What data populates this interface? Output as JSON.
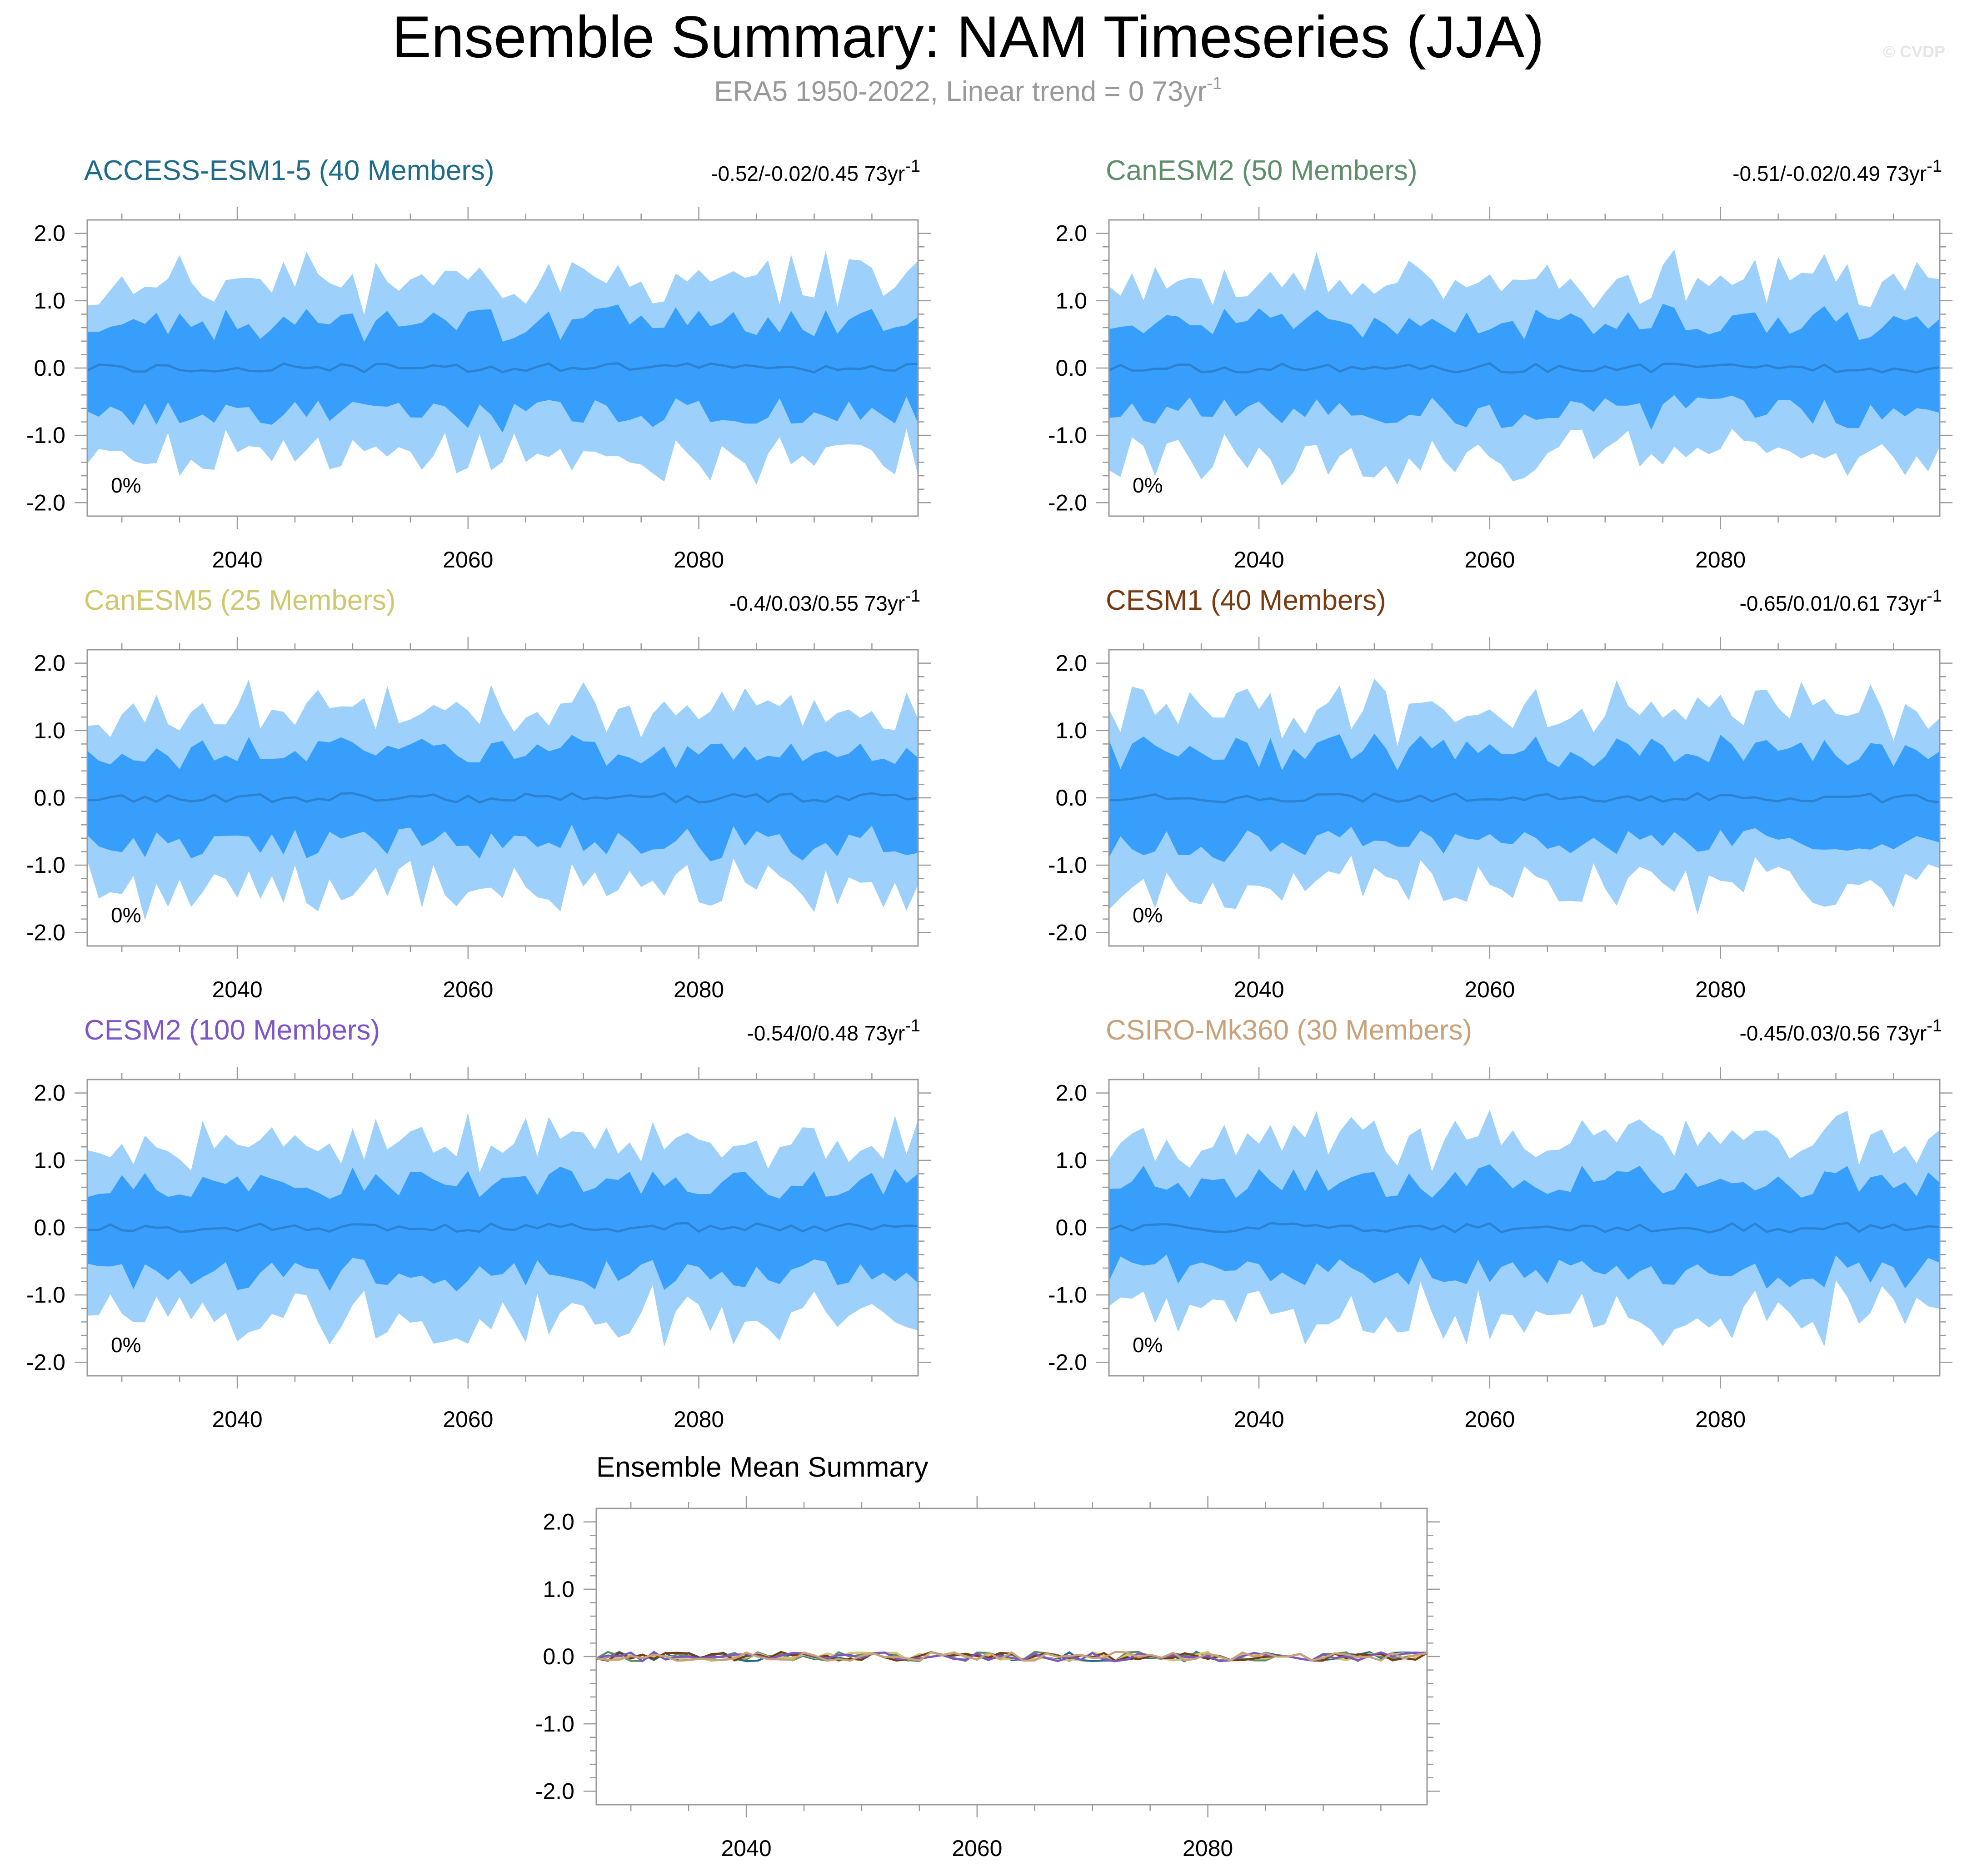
{
  "header": {
    "title": "Ensemble Summary: NAM Timeseries (JJA)",
    "subtitle": "ERA5 1950-2022, Linear trend = 0 73yr",
    "subtitle_sup": "-1",
    "watermark": "© CVDP"
  },
  "colors": {
    "band_outer": "#9dd1fb",
    "band_inner": "#379ffb",
    "mean_line": "#2c82d0",
    "axis": "#9a9a9a",
    "text": "#000000"
  },
  "panels": [
    {
      "id": "access",
      "title": "ACCESS-ESM1-5 (40 Members)",
      "color": "#1f6b8a",
      "range_text": "-0.52/-0.02/0.45 73yr",
      "range_sup": "-1",
      "pct_label": "0%",
      "seed": 11
    },
    {
      "id": "canesm2",
      "title": "CanESM2 (50 Members)",
      "color": "#5f8f6a",
      "range_text": "-0.51/-0.02/0.49 73yr",
      "range_sup": "-1",
      "pct_label": "0%",
      "seed": 23
    },
    {
      "id": "canesm5",
      "title": "CanESM5 (25 Members)",
      "color": "#cfc86f",
      "range_text": "-0.4/0.03/0.55 73yr",
      "range_sup": "-1",
      "pct_label": "0%",
      "seed": 37
    },
    {
      "id": "cesm1",
      "title": "CESM1 (40 Members)",
      "color": "#7a3b12",
      "range_text": "-0.65/0.01/0.61 73yr",
      "range_sup": "-1",
      "pct_label": "0%",
      "seed": 41
    },
    {
      "id": "cesm2",
      "title": "CESM2 (100 Members)",
      "color": "#7d56c8",
      "range_text": "-0.54/0/0.48 73yr",
      "range_sup": "-1",
      "pct_label": "0%",
      "seed": 53
    },
    {
      "id": "csiro",
      "title": "CSIRO-Mk360 (30 Members)",
      "color": "#c8a27a",
      "range_text": "-0.45/0.03/0.56 73yr",
      "range_sup": "-1",
      "pct_label": "0%",
      "seed": 67
    }
  ],
  "mean_panel": {
    "title": "Ensemble Mean Summary",
    "series_colors": [
      "#1f6b8a",
      "#5f8f6a",
      "#cfc86f",
      "#7a3b12",
      "#7d56c8",
      "#c8a27a"
    ]
  },
  "chart_data": {
    "type": "area",
    "description_series": [
      "10-90% spread band",
      "25-75% spread band",
      "ensemble mean"
    ],
    "x_range": [
      2027,
      2099
    ],
    "ylim": [
      -2.2,
      2.2
    ],
    "xticks": [
      2040,
      2060,
      2080
    ],
    "xtick_labels": [
      "2040",
      "2060",
      "2080"
    ],
    "yticks": [
      2.0,
      1.0,
      0.0,
      -1.0,
      -2.0
    ],
    "ytick_labels": [
      "2.0",
      "1.0",
      "0.0",
      "-1.0",
      "-2.0"
    ],
    "approx_outer_band": [
      -1.4,
      1.3
    ],
    "approx_inner_band": [
      -0.7,
      0.6
    ],
    "approx_mean": 0.0
  }
}
